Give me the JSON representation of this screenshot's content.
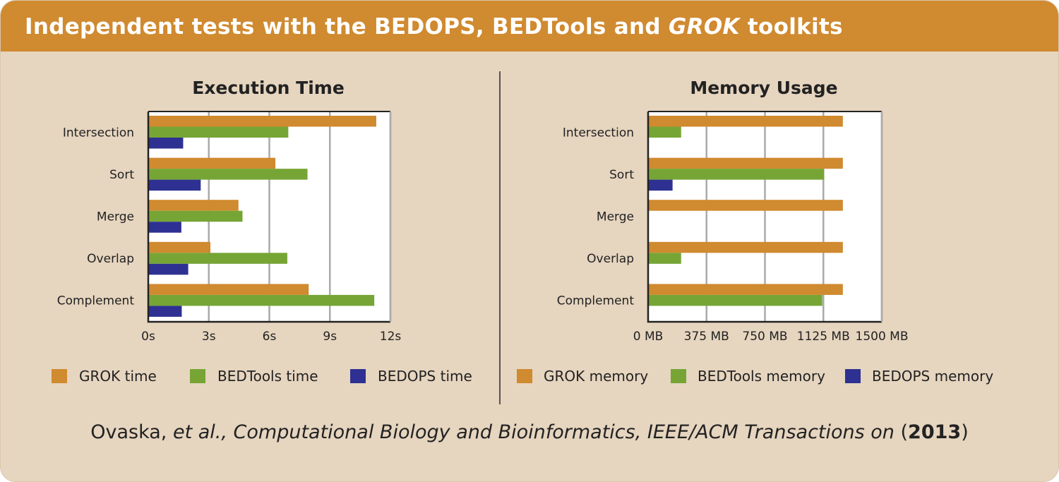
{
  "header": {
    "title_pre": "Independent tests with the BEDOPS, BEDTools and ",
    "title_italic": "GROK",
    "title_post": " toolkits"
  },
  "citation": {
    "author": "Ovaska, ",
    "etal": "et al., Computational Biology and Bioinformatics, IEEE/ACM Transactions on",
    "open": " (",
    "year": "2013",
    "close": ")"
  },
  "colors": {
    "grok": "#d08a2f",
    "bedtools": "#76a535",
    "bedops": "#2e3192"
  },
  "chart_data": [
    {
      "type": "bar",
      "orientation": "horizontal",
      "title": "Execution Time",
      "xlabel": "",
      "ylabel": "",
      "categories": [
        "Intersection",
        "Sort",
        "Merge",
        "Overlap",
        "Complement"
      ],
      "xlim": [
        0,
        12
      ],
      "xticks": [
        0,
        3,
        6,
        9,
        12
      ],
      "xtick_labels": [
        "0s",
        "3s",
        "6s",
        "9s",
        "12s"
      ],
      "grid": true,
      "legend": "bottom",
      "series": [
        {
          "name": "GROK time",
          "values": [
            11.3,
            6.3,
            4.47,
            3.08,
            7.95
          ]
        },
        {
          "name": "BEDTools time",
          "values": [
            6.94,
            7.89,
            4.67,
            6.89,
            11.2
          ]
        },
        {
          "name": "BEDOPS time",
          "values": [
            1.73,
            2.6,
            1.64,
            1.98,
            1.66
          ]
        }
      ]
    },
    {
      "type": "bar",
      "orientation": "horizontal",
      "title": "Memory Usage",
      "xlabel": "",
      "ylabel": "",
      "categories": [
        "Intersection",
        "Sort",
        "Merge",
        "Overlap",
        "Complement"
      ],
      "xlim": [
        0,
        1500
      ],
      "xticks": [
        0,
        375,
        750,
        1125,
        1500
      ],
      "xtick_labels": [
        "0 MB",
        "375 MB",
        "750 MB",
        "1125 MB",
        "1500 MB"
      ],
      "grid": true,
      "legend": "bottom",
      "series": [
        {
          "name": "GROK memory",
          "values": [
            1250,
            1250,
            1250,
            1250,
            1250
          ]
        },
        {
          "name": "BEDTools memory",
          "values": [
            212,
            1130,
            3,
            212,
            1118
          ]
        },
        {
          "name": "BEDOPS memory",
          "values": [
            2,
            157,
            2,
            2,
            2
          ]
        }
      ]
    }
  ]
}
